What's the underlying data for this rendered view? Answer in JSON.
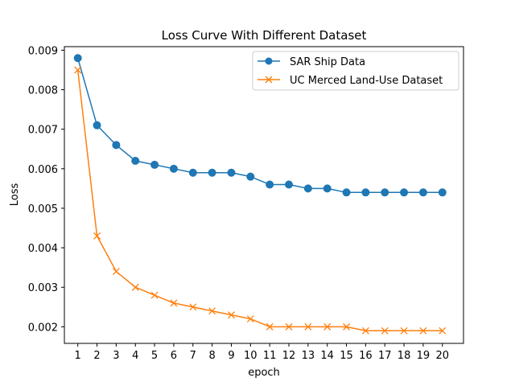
{
  "chart_data": {
    "type": "line",
    "title": "Loss Curve With Different Dataset",
    "xlabel": "epoch",
    "ylabel": "Loss",
    "x": [
      1,
      2,
      3,
      4,
      5,
      6,
      7,
      8,
      9,
      10,
      11,
      12,
      13,
      14,
      15,
      16,
      17,
      18,
      19,
      20
    ],
    "xlim": [
      0.3,
      21.1
    ],
    "ylim": [
      0.00158,
      0.00909
    ],
    "yticks": [
      0.002,
      0.003,
      0.004,
      0.005,
      0.006,
      0.007,
      0.008,
      0.009
    ],
    "ytick_labels": [
      "0.002",
      "0.003",
      "0.004",
      "0.005",
      "0.006",
      "0.007",
      "0.008",
      "0.009"
    ],
    "xtick_labels": [
      "1",
      "2",
      "3",
      "4",
      "5",
      "6",
      "7",
      "8",
      "9",
      "10",
      "11",
      "12",
      "13",
      "14",
      "15",
      "16",
      "17",
      "18",
      "19",
      "20"
    ],
    "grid": false,
    "legend_position": "top-right",
    "series": [
      {
        "name": "SAR Ship Data",
        "color": "#1f77b4",
        "marker": "circle",
        "values": [
          0.0088,
          0.0071,
          0.0066,
          0.0062,
          0.0061,
          0.006,
          0.0059,
          0.0059,
          0.0059,
          0.0058,
          0.0056,
          0.0056,
          0.0055,
          0.0055,
          0.0054,
          0.0054,
          0.0054,
          0.0054,
          0.0054,
          0.0054
        ]
      },
      {
        "name": "UC Merced Land-Use Dataset",
        "color": "#ff7f0e",
        "marker": "x",
        "values": [
          0.0085,
          0.0043,
          0.0034,
          0.003,
          0.0028,
          0.0026,
          0.0025,
          0.0024,
          0.0023,
          0.0022,
          0.002,
          0.002,
          0.002,
          0.002,
          0.002,
          0.0019,
          0.0019,
          0.0019,
          0.0019,
          0.0019
        ]
      }
    ]
  }
}
